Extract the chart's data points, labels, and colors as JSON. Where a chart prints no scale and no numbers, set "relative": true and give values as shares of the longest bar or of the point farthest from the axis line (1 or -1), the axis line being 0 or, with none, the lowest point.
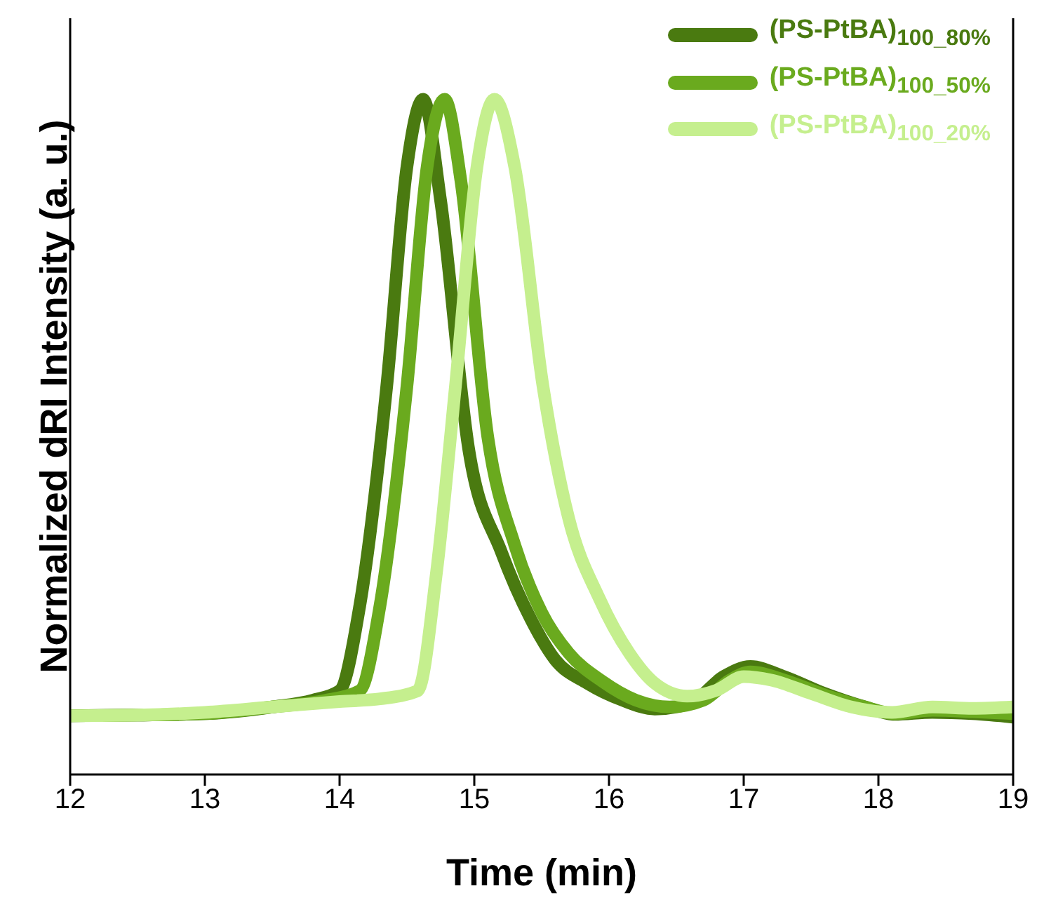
{
  "chart_data": {
    "type": "line",
    "relative": true,
    "xlabel": "Time (min)",
    "ylabel": "Normalized dRI Intensity (a. u.)",
    "xlim": [
      12,
      19
    ],
    "xticks": [
      12,
      13,
      14,
      15,
      16,
      17,
      18,
      19
    ],
    "legend": "top right",
    "marker": "none",
    "line_style": "solid",
    "series": [
      {
        "name": "(PS-PtBA)$_{100_80%}$",
        "color": "#4a7a10",
        "x": [
          12,
          12.5,
          13,
          13.5,
          13.8,
          14,
          14.15,
          14.35,
          14.5,
          14.62,
          14.75,
          14.96,
          15.2,
          15.42,
          15.6,
          15.84,
          16.1,
          16.34,
          16.6,
          16.85,
          17.05,
          17.3,
          17.6,
          17.9,
          18.12,
          18.4,
          18.7,
          19
        ],
        "values": [
          0.087,
          0.088,
          0.09,
          0.1,
          0.11,
          0.124,
          0.25,
          0.575,
          0.9,
          1.0,
          0.85,
          0.48,
          0.33,
          0.23,
          0.17,
          0.135,
          0.11,
          0.097,
          0.105,
          0.145,
          0.16,
          0.145,
          0.12,
          0.1,
          0.089,
          0.092,
          0.09,
          0.085
        ]
      },
      {
        "name": "(PS-PtBA)$_{100_50%}$",
        "color": "#6aaa1e",
        "x": [
          12,
          12.5,
          13,
          13.5,
          13.9,
          14.15,
          14.3,
          14.5,
          14.65,
          14.78,
          14.9,
          15.1,
          15.3,
          15.5,
          15.7,
          15.95,
          16.2,
          16.45,
          16.7,
          16.9,
          17.05,
          17.3,
          17.6,
          17.9,
          18.12,
          18.4,
          18.7,
          19
        ],
        "values": [
          0.087,
          0.088,
          0.09,
          0.1,
          0.11,
          0.124,
          0.25,
          0.575,
          0.9,
          1.0,
          0.88,
          0.5,
          0.34,
          0.24,
          0.18,
          0.138,
          0.11,
          0.1,
          0.11,
          0.14,
          0.152,
          0.14,
          0.118,
          0.1,
          0.09,
          0.095,
          0.093,
          0.09
        ]
      },
      {
        "name": "(PS-PtBA)$_{100_20%}$",
        "color": "#c5ef8e",
        "x": [
          12,
          12.5,
          13,
          13.5,
          14,
          14.3,
          14.58,
          14.72,
          14.86,
          15.02,
          15.15,
          15.3,
          15.51,
          15.7,
          15.93,
          16.15,
          16.34,
          16.58,
          16.8,
          17.0,
          17.2,
          17.5,
          17.8,
          18.1,
          18.4,
          18.7,
          19
        ],
        "values": [
          0.087,
          0.088,
          0.092,
          0.1,
          0.108,
          0.112,
          0.124,
          0.3,
          0.575,
          0.9,
          1.0,
          0.9,
          0.575,
          0.38,
          0.26,
          0.18,
          0.135,
          0.116,
          0.125,
          0.145,
          0.14,
          0.12,
          0.1,
          0.092,
          0.1,
          0.098,
          0.1
        ]
      }
    ]
  }
}
